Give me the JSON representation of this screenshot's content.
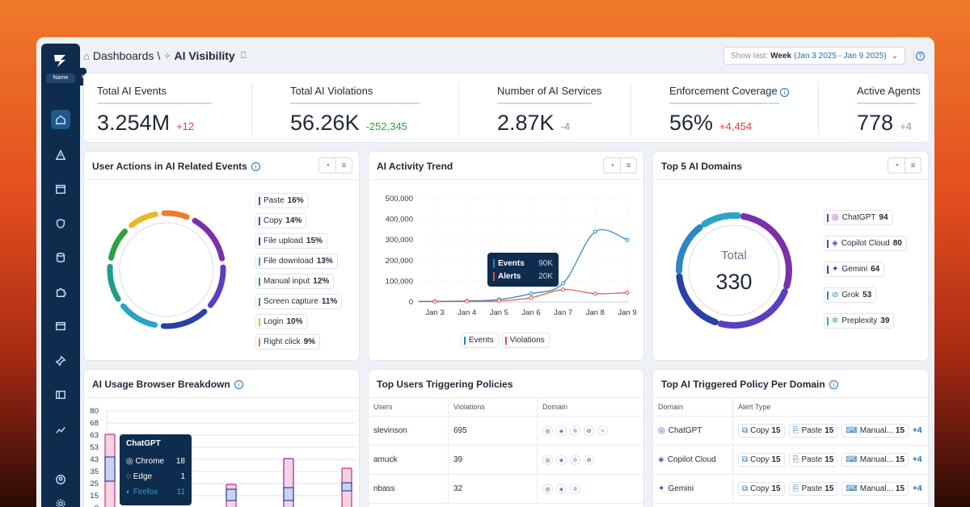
{
  "sidebar": {
    "name": "Name"
  },
  "breadcrumb": {
    "root": "Dashboards",
    "sep": "\\",
    "current": "AI Visibility"
  },
  "range": {
    "label": "Show last:",
    "period": "Week",
    "dates": "(Jan 3 2025 - Jan 9 2025)"
  },
  "kpis": [
    {
      "title": "Total AI Events",
      "value": "3.254M",
      "delta": "+12",
      "delta_color": "#e03e3e"
    },
    {
      "title": "Total AI Violations",
      "value": "56.26K",
      "delta": "-252,345",
      "delta_color": "#2f9e44"
    },
    {
      "title": "Number of AI Services",
      "value": "2.87K",
      "delta": "-4",
      "delta_color": "#8a95a3"
    },
    {
      "title": "Enforcement Coverage",
      "value": "56%",
      "delta": "+4,454",
      "delta_color": "#e03e3e"
    },
    {
      "title": "Active Agents",
      "value": "778",
      "delta": "+4",
      "delta_color": "#8a95a3"
    }
  ],
  "user_actions": {
    "title": "User Actions in AI Related Events",
    "items": [
      {
        "label": "Paste",
        "value": "16%",
        "color": "#7b2fa8"
      },
      {
        "label": "Copy",
        "value": "14%",
        "color": "#5b3fc0"
      },
      {
        "label": "File upload",
        "value": "15%",
        "color": "#2a3fa8"
      },
      {
        "label": "File download",
        "value": "13%",
        "color": "#2aa4c8"
      },
      {
        "label": "Manual input",
        "value": "12%",
        "color": "#1f9e8a"
      },
      {
        "label": "Screen capture",
        "value": "11%",
        "color": "#2f9e44"
      },
      {
        "label": "Login",
        "value": "10%",
        "color": "#f0b429"
      },
      {
        "label": "Right click",
        "value": "9%",
        "color": "#f07a2a"
      }
    ]
  },
  "trend": {
    "title": "AI Activity Trend",
    "tooltip": {
      "events_label": "Events",
      "events_value": "90K",
      "alerts_label": "Alerts",
      "alerts_value": "20K"
    },
    "legend": [
      "Events",
      "Violations"
    ]
  },
  "chart_data": {
    "type": "line",
    "x": [
      "Jan 3",
      "Jan 4",
      "Jan 5",
      "Jan 6",
      "Jan 7",
      "Jan 8",
      "Jan 9"
    ],
    "yticks": [
      "500,000",
      "400,000",
      "300,000",
      "200,000",
      "100,000",
      "0"
    ],
    "ylim": [
      0,
      500000
    ],
    "series": [
      {
        "name": "Events",
        "color": "#2a86c4",
        "values": [
          3000,
          5000,
          12000,
          40000,
          90000,
          340000,
          300000
        ]
      },
      {
        "name": "Violations",
        "color": "#e05050",
        "values": [
          2000,
          3000,
          5000,
          20000,
          60000,
          40000,
          45000
        ]
      }
    ]
  },
  "domains": {
    "title": "Top 5 AI Domains",
    "total_label": "Total",
    "total_value": "330",
    "items": [
      {
        "label": "ChatGPT",
        "value": "94",
        "color": "#7b2fa8",
        "icon": "◎"
      },
      {
        "label": "Copilot Cloud",
        "value": "80",
        "color": "#5b3fc0",
        "icon": "◈"
      },
      {
        "label": "Gemini",
        "value": "64",
        "color": "#2a3fa8",
        "icon": "✦"
      },
      {
        "label": "Grok",
        "value": "53",
        "color": "#2a86c4",
        "icon": "⊘"
      },
      {
        "label": "Preplexity",
        "value": "39",
        "color": "#2aa4c8",
        "icon": "✲"
      }
    ]
  },
  "browser": {
    "title": "AI Usage Browser Breakdown",
    "yticks": [
      "80",
      "68",
      "63",
      "53",
      "43",
      "35",
      "25",
      "15",
      "0"
    ],
    "tooltip": {
      "title": "ChatGPT",
      "rows": [
        {
          "label": "Chrome",
          "value": "18"
        },
        {
          "label": "Edge",
          "value": "1"
        },
        {
          "label": "Firefox",
          "value": "11"
        }
      ]
    }
  },
  "top_users": {
    "title": "Top Users Triggering Policies",
    "headers": [
      "Users",
      "Violations",
      "Domain"
    ],
    "rows": [
      {
        "user": "slevinson",
        "violations": "695"
      },
      {
        "user": "amuck",
        "violations": "39"
      },
      {
        "user": "nbass",
        "violations": "32"
      }
    ]
  },
  "policy_domain": {
    "title": "Top AI Triggered Policy Per Domain",
    "headers": [
      "Domain",
      "Alert Type"
    ],
    "rows": [
      {
        "domain": "ChatGPT",
        "icon": "◎",
        "c1": "Copy",
        "v1": "15",
        "c2": "Paste",
        "v2": "15",
        "c3": "Manual...",
        "v3": "15",
        "more": "+4"
      },
      {
        "domain": "Copilot Cloud",
        "icon": "◈",
        "c1": "Copy",
        "v1": "15",
        "c2": "Paste",
        "v2": "15",
        "c3": "Manual...",
        "v3": "15",
        "more": "+4"
      },
      {
        "domain": "Gemini",
        "icon": "✦",
        "c1": "Copy",
        "v1": "15",
        "c2": "Paste",
        "v2": "15",
        "c3": "Manual...",
        "v3": "15",
        "more": "+4"
      }
    ]
  }
}
